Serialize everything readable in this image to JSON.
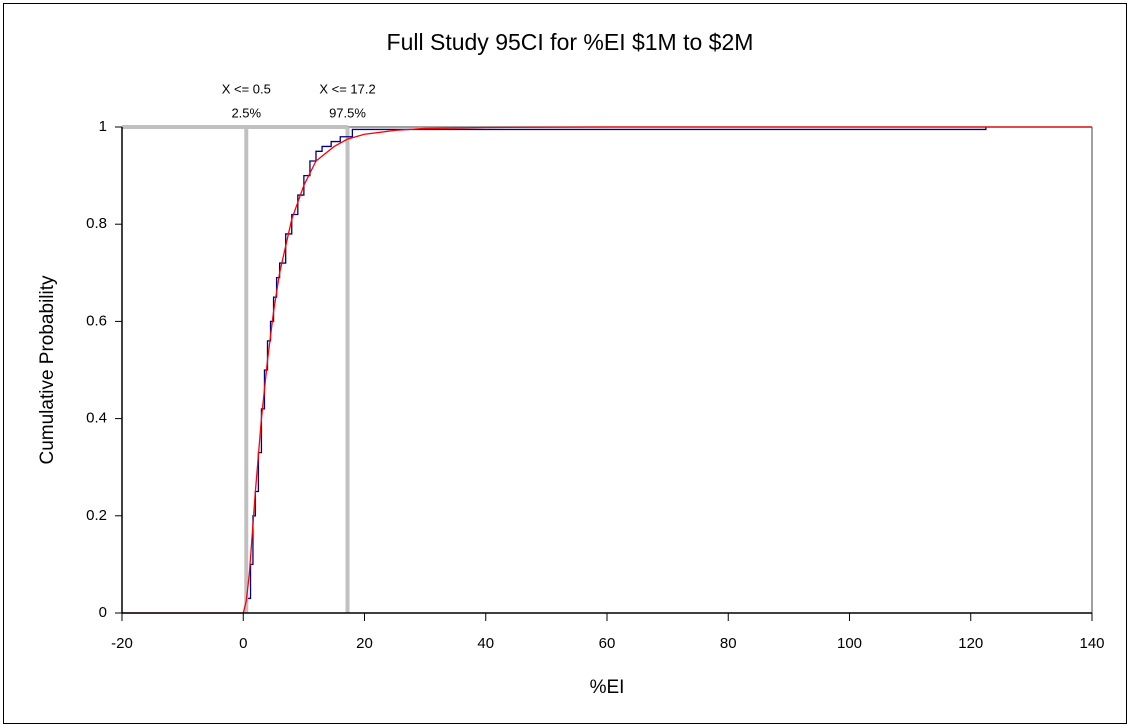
{
  "chart_data": {
    "type": "line",
    "title": "Full Study 95CI for %EI  $1M to $2M",
    "x_label": "%EI",
    "y_label": "Cumulative Probability",
    "xlim": [
      -20,
      140
    ],
    "ylim": [
      0,
      1
    ],
    "xticks": [
      -20,
      0,
      20,
      40,
      60,
      80,
      100,
      120,
      140
    ],
    "yticks": [
      0,
      0.2,
      0.4,
      0.6,
      0.8,
      1
    ],
    "series": [
      {
        "color": "#000080",
        "drawstyle": "steps-post",
        "x": [
          0.8,
          1.2,
          1.6,
          2.0,
          2.5,
          3.0,
          3.5,
          4.0,
          4.5,
          5.0,
          5.5,
          6.0,
          7.0,
          8.0,
          9.0,
          10.0,
          11.0,
          12.0,
          13.0,
          14.5,
          16.0,
          18.0,
          122.5
        ],
        "values": [
          0.03,
          0.1,
          0.2,
          0.25,
          0.33,
          0.42,
          0.5,
          0.56,
          0.6,
          0.65,
          0.69,
          0.72,
          0.78,
          0.82,
          0.86,
          0.9,
          0.93,
          0.95,
          0.96,
          0.97,
          0.98,
          0.995,
          1
        ]
      },
      {
        "color": "#ff0000",
        "drawstyle": "default",
        "x": [
          -20,
          0,
          0.5,
          1,
          2,
          3,
          4,
          5,
          6,
          8,
          10,
          12,
          15,
          17.2,
          20,
          25,
          30,
          40,
          60,
          140
        ],
        "values": [
          0,
          0,
          0.025,
          0.08,
          0.25,
          0.4,
          0.52,
          0.62,
          0.7,
          0.81,
          0.88,
          0.93,
          0.96,
          0.975,
          0.985,
          0.993,
          0.997,
          0.999,
          1,
          1
        ]
      }
    ],
    "annotations": [
      {
        "x": 0.5,
        "label": "X <= 0.5",
        "p_label": "2.5%"
      },
      {
        "x": 17.2,
        "label": "X <= 17.2",
        "p_label": "97.5%"
      }
    ],
    "marker_color": "#c0c0c0"
  }
}
